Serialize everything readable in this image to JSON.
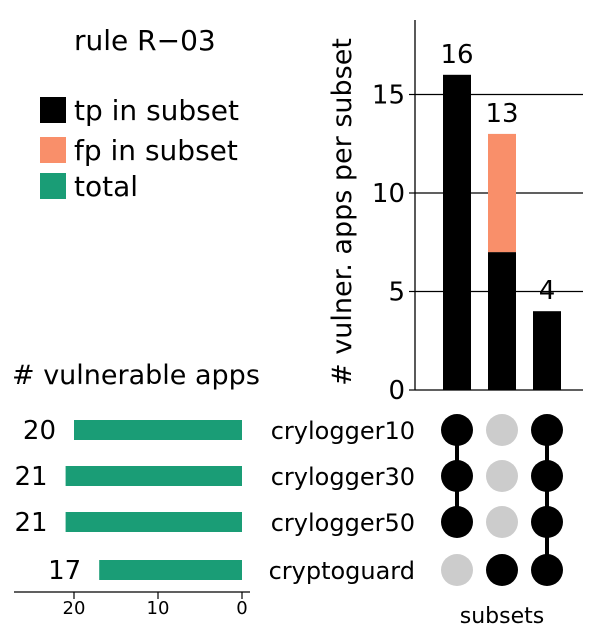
{
  "title": "rule R−03",
  "legend": [
    {
      "label": "tp in subset",
      "color": "#000000"
    },
    {
      "label": "fp in subset",
      "color": "#f98f6a"
    },
    {
      "label": "total",
      "color": "#1a9d76"
    }
  ],
  "side_title": "# vulnerable apps",
  "subsets_label": "subsets",
  "chart_data": [
    {
      "type": "bar",
      "ylabel": "# vulner. apps per subset",
      "ylim": [
        0,
        18
      ],
      "yticks": [
        0,
        5,
        10,
        15
      ],
      "categories": [
        "subset1",
        "subset2",
        "subset3"
      ],
      "series": [
        {
          "name": "tp in subset",
          "values": [
            16,
            7,
            4
          ],
          "color": "#000000"
        },
        {
          "name": "fp in subset",
          "values": [
            0,
            6,
            0
          ],
          "color": "#f98f6a"
        }
      ],
      "totals": [
        16,
        13,
        4
      ]
    },
    {
      "type": "bar",
      "orientation": "horizontal",
      "categories": [
        "crylogger10",
        "crylogger30",
        "crylogger50",
        "cryptoguard"
      ],
      "values": [
        20,
        21,
        21,
        17
      ],
      "xticks": [
        20,
        10,
        0
      ],
      "xlim": [
        0,
        27
      ],
      "color": "#1a9d76"
    },
    {
      "type": "matrix",
      "rows": [
        "crylogger10",
        "crylogger30",
        "crylogger50",
        "cryptoguard"
      ],
      "membership": [
        [
          true,
          true,
          true,
          false
        ],
        [
          false,
          false,
          false,
          true
        ],
        [
          true,
          true,
          true,
          true
        ]
      ],
      "active_color": "#000000",
      "inactive_color": "#cccccc"
    }
  ]
}
